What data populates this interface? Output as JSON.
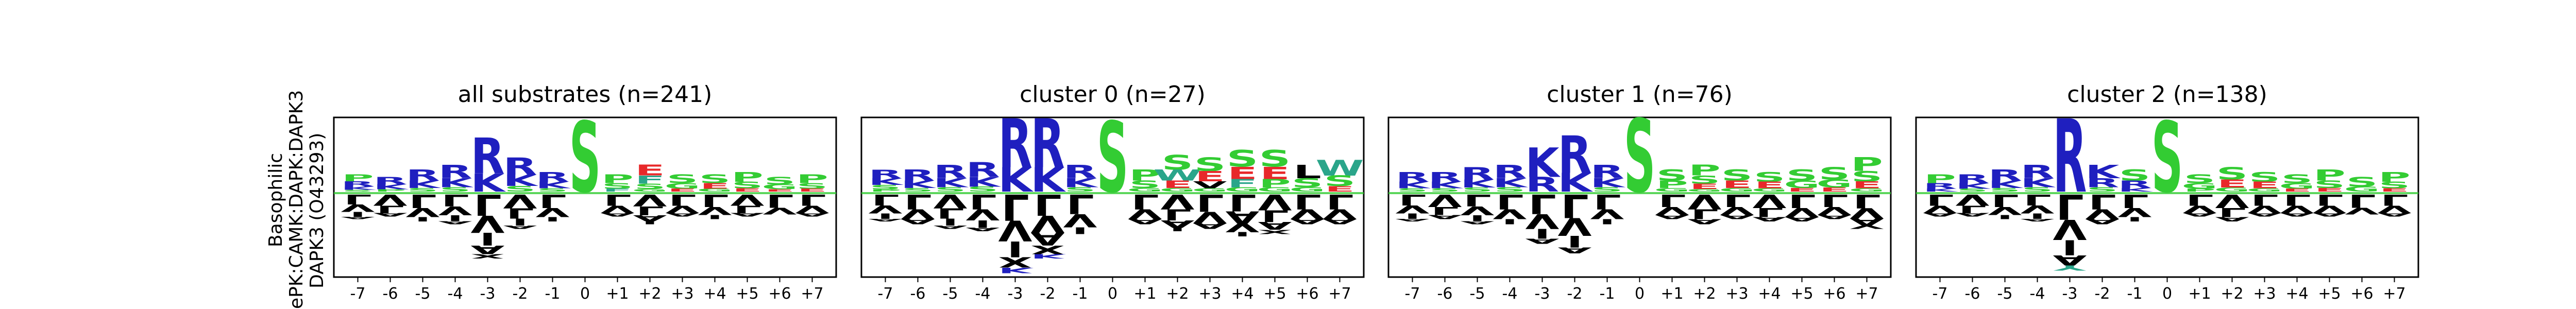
{
  "row_label": [
    "Basophilic",
    "ePK:CAMK:DAPK:DAPK3",
    "DAPK3 (O43293)"
  ],
  "colors": {
    "basic": "#1f1fbf",
    "polar_small": "#33cc33",
    "acidic": "#e8282a",
    "hydrophobic": "#000000",
    "amide": "#c957c9",
    "aromatic": "#2aa58a"
  },
  "chart_data": [
    {
      "type": "sequence-logo",
      "title": "all substrates (n=241)",
      "positions": [
        "-7",
        "-6",
        "-5",
        "-4",
        "-3",
        "-2",
        "-1",
        "0",
        "+1",
        "+2",
        "+3",
        "+4",
        "+5",
        "+6",
        "+7"
      ],
      "central_residue": "S",
      "up": [
        [
          "P",
          "R",
          "K",
          "S"
        ],
        [
          "R",
          "K",
          "P"
        ],
        [
          "R",
          "K",
          "S"
        ],
        [
          "R",
          "K",
          "S"
        ],
        [
          "R",
          "K"
        ],
        [
          "R",
          "K",
          "S"
        ],
        [
          "R",
          "K",
          "S"
        ],
        [
          "S"
        ],
        [
          "P",
          "S",
          "F"
        ],
        [
          "E",
          "F",
          "S",
          "G"
        ],
        [
          "S",
          "G",
          "E"
        ],
        [
          "S",
          "E",
          "G"
        ],
        [
          "P",
          "S",
          "E"
        ],
        [
          "S",
          "G",
          "E"
        ],
        [
          "P",
          "S",
          "E"
        ]
      ],
      "up_heights": [
        0.35,
        0.3,
        0.45,
        0.55,
        1.1,
        0.7,
        0.4,
        1.45,
        0.35,
        0.55,
        0.35,
        0.35,
        0.4,
        0.3,
        0.35
      ],
      "down": [
        [
          "L",
          "V",
          "I",
          "A"
        ],
        [
          "V",
          "L",
          "A"
        ],
        [
          "L",
          "V",
          "I"
        ],
        [
          "L",
          "V",
          "I",
          "A"
        ],
        [
          "L",
          "V",
          "I",
          "A",
          "X"
        ],
        [
          "V",
          "L",
          "I",
          "A"
        ],
        [
          "L",
          "V",
          "I"
        ],
        [],
        [
          "L",
          "V",
          "A"
        ],
        [
          "V",
          "L",
          "A",
          "I"
        ],
        [
          "L",
          "V",
          "A"
        ],
        [
          "L",
          "V",
          "I"
        ],
        [
          "V",
          "L",
          "A"
        ],
        [
          "L",
          "V"
        ],
        [
          "L",
          "V",
          "A"
        ]
      ],
      "down_heights": [
        0.5,
        0.45,
        0.55,
        0.6,
        1.3,
        0.7,
        0.55,
        0,
        0.45,
        0.6,
        0.45,
        0.5,
        0.45,
        0.4,
        0.45
      ]
    },
    {
      "type": "sequence-logo",
      "title": "cluster 0 (n=27)",
      "positions": [
        "-7",
        "-6",
        "-5",
        "-4",
        "-3",
        "-2",
        "-1",
        "0",
        "+1",
        "+2",
        "+3",
        "+4",
        "+5",
        "+6",
        "+7"
      ],
      "central_residue": "S",
      "up": [
        [
          "R",
          "K",
          "S",
          "P"
        ],
        [
          "R",
          "K",
          "S"
        ],
        [
          "R",
          "K",
          "S"
        ],
        [
          "R",
          "K",
          "S"
        ],
        [
          "R",
          "K"
        ],
        [
          "R",
          "K"
        ],
        [
          "R",
          "K",
          "S"
        ],
        [
          "S"
        ],
        [
          "P",
          "S",
          "G"
        ],
        [
          "S",
          "W",
          "E",
          "G"
        ],
        [
          "S",
          "E",
          "V",
          "G"
        ],
        [
          "S",
          "E",
          "F",
          "G"
        ],
        [
          "S",
          "E",
          "P",
          "G"
        ],
        [
          "L",
          "S",
          "G"
        ],
        [
          "W",
          "S",
          "E"
        ]
      ],
      "up_heights": [
        0.45,
        0.45,
        0.55,
        0.6,
        1.5,
        1.5,
        0.55,
        1.45,
        0.45,
        0.75,
        0.7,
        0.85,
        0.85,
        0.55,
        0.65
      ],
      "down": [
        [
          "L",
          "V",
          "I",
          "A"
        ],
        [
          "L",
          "V",
          "A"
        ],
        [
          "V",
          "L",
          "I",
          "A"
        ],
        [
          "L",
          "V",
          "I",
          "A"
        ],
        [
          "L",
          "V",
          "I",
          "X",
          "K"
        ],
        [
          "L",
          "V",
          "A",
          "X",
          "K"
        ],
        [
          "L",
          "V",
          "I"
        ],
        [],
        [
          "L",
          "V",
          "A"
        ],
        [
          "V",
          "L",
          "A",
          "I"
        ],
        [
          "L",
          "V",
          "A"
        ],
        [
          "L",
          "A",
          "V",
          "I"
        ],
        [
          "V",
          "L",
          "A",
          "X"
        ],
        [
          "L",
          "V",
          "A"
        ],
        [
          "L",
          "V",
          "A"
        ]
      ],
      "down_heights": [
        0.55,
        0.6,
        0.7,
        0.75,
        1.6,
        1.3,
        0.8,
        0,
        0.6,
        0.75,
        0.7,
        0.85,
        0.8,
        0.6,
        0.6
      ]
    },
    {
      "type": "sequence-logo",
      "title": "cluster 1 (n=76)",
      "positions": [
        "-7",
        "-6",
        "-5",
        "-4",
        "-3",
        "-2",
        "-1",
        "0",
        "+1",
        "+2",
        "+3",
        "+4",
        "+5",
        "+6",
        "+7"
      ],
      "central_residue": "S",
      "up": [
        [
          "R",
          "K",
          "S"
        ],
        [
          "R",
          "K",
          "S"
        ],
        [
          "R",
          "K",
          "S"
        ],
        [
          "R",
          "K",
          "S"
        ],
        [
          "K",
          "R"
        ],
        [
          "R",
          "K"
        ],
        [
          "R",
          "K",
          "S"
        ],
        [
          "S"
        ],
        [
          "S",
          "P",
          "G"
        ],
        [
          "P",
          "S",
          "E",
          "G"
        ],
        [
          "S",
          "E",
          "G"
        ],
        [
          "S",
          "E",
          "G"
        ],
        [
          "S",
          "G",
          "E"
        ],
        [
          "S",
          "G",
          "E"
        ],
        [
          "P",
          "S",
          "E",
          "G"
        ]
      ],
      "up_heights": [
        0.4,
        0.4,
        0.5,
        0.55,
        0.9,
        1.15,
        0.55,
        1.5,
        0.45,
        0.55,
        0.45,
        0.4,
        0.45,
        0.5,
        0.7
      ],
      "down": [
        [
          "L",
          "V",
          "I",
          "A"
        ],
        [
          "V",
          "L",
          "A"
        ],
        [
          "L",
          "V",
          "I",
          "A"
        ],
        [
          "L",
          "V",
          "I"
        ],
        [
          "L",
          "V",
          "I",
          "A"
        ],
        [
          "L",
          "V",
          "I",
          "A"
        ],
        [
          "L",
          "V",
          "I"
        ],
        [],
        [
          "L",
          "V",
          "A"
        ],
        [
          "V",
          "L",
          "A"
        ],
        [
          "L",
          "V",
          "A"
        ],
        [
          "V",
          "L",
          "A"
        ],
        [
          "L",
          "V",
          "A"
        ],
        [
          "L",
          "V",
          "A"
        ],
        [
          "L",
          "V",
          "A",
          "V"
        ]
      ],
      "down_heights": [
        0.55,
        0.5,
        0.6,
        0.6,
        1.0,
        1.2,
        0.6,
        0,
        0.5,
        0.6,
        0.5,
        0.55,
        0.55,
        0.5,
        0.7
      ]
    },
    {
      "type": "sequence-logo",
      "title": "cluster 2 (n=138)",
      "positions": [
        "-7",
        "-6",
        "-5",
        "-4",
        "-3",
        "-2",
        "-1",
        "0",
        "+1",
        "+2",
        "+3",
        "+4",
        "+5",
        "+6",
        "+7"
      ],
      "central_residue": "S",
      "up": [
        [
          "P",
          "R",
          "K"
        ],
        [
          "R",
          "K",
          "S"
        ],
        [
          "R",
          "K",
          "S"
        ],
        [
          "R",
          "K",
          "S"
        ],
        [
          "R"
        ],
        [
          "K",
          "R",
          "S"
        ],
        [
          "S",
          "R",
          "K"
        ],
        [
          "S"
        ],
        [
          "S",
          "G",
          "P"
        ],
        [
          "S",
          "E",
          "G"
        ],
        [
          "S",
          "E",
          "G"
        ],
        [
          "S",
          "G",
          "E"
        ],
        [
          "P",
          "S",
          "E"
        ],
        [
          "S",
          "G"
        ],
        [
          "P",
          "S",
          "E"
        ]
      ],
      "up_heights": [
        0.35,
        0.35,
        0.45,
        0.55,
        1.5,
        0.55,
        0.45,
        1.45,
        0.35,
        0.5,
        0.4,
        0.35,
        0.45,
        0.3,
        0.4
      ],
      "down": [
        [
          "L",
          "V",
          "A"
        ],
        [
          "V",
          "L",
          "A"
        ],
        [
          "L",
          "V",
          "I"
        ],
        [
          "L",
          "V",
          "I",
          "A"
        ],
        [
          "L",
          "V",
          "I",
          "A",
          "Y"
        ],
        [
          "L",
          "V",
          "A"
        ],
        [
          "L",
          "V",
          "I"
        ],
        [],
        [
          "L",
          "V",
          "A"
        ],
        [
          "V",
          "L",
          "A"
        ],
        [
          "L",
          "V",
          "A"
        ],
        [
          "L",
          "V",
          "A"
        ],
        [
          "L",
          "V",
          "A"
        ],
        [
          "L",
          "V"
        ],
        [
          "L",
          "V",
          "A"
        ]
      ],
      "down_heights": [
        0.45,
        0.45,
        0.5,
        0.55,
        1.55,
        0.6,
        0.55,
        0,
        0.45,
        0.55,
        0.45,
        0.45,
        0.45,
        0.4,
        0.45
      ]
    }
  ]
}
